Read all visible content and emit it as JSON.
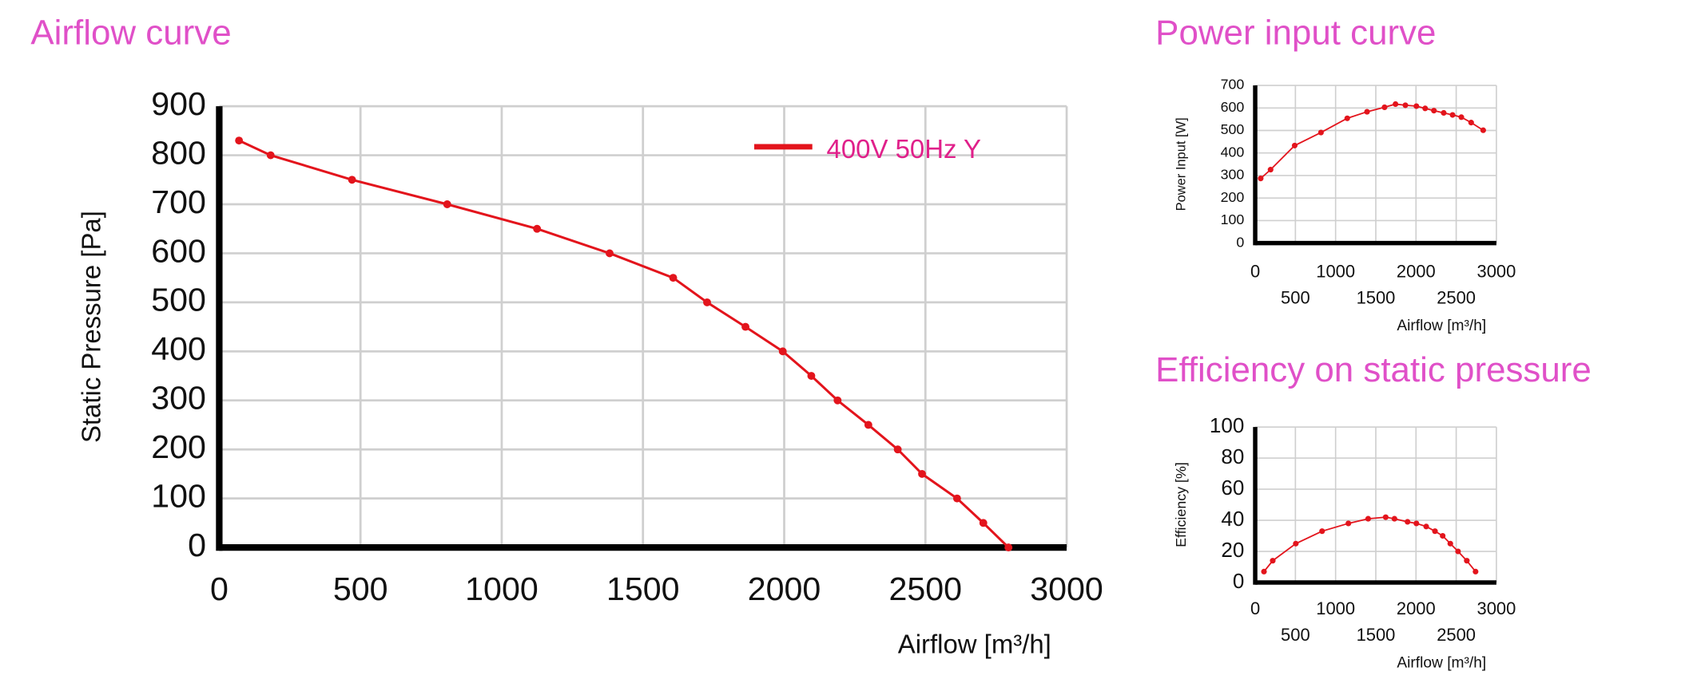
{
  "chart_data": [
    {
      "type": "line",
      "title": "Airflow curve",
      "x_label": "Airflow [m³/h]",
      "y_label": "Static Pressure [Pa]",
      "x": [
        70,
        182,
        470,
        807,
        1125,
        1382,
        1607,
        1727,
        1863,
        1995,
        2096,
        2189,
        2298,
        2402,
        2488,
        2612,
        2705,
        2794
      ],
      "series": [
        {
          "name": "400V 50Hz Y",
          "color": "#e3141c",
          "values": [
            830,
            800,
            750,
            700,
            650,
            600,
            550,
            500,
            450,
            400,
            350,
            300,
            250,
            200,
            150,
            100,
            50,
            0
          ]
        }
      ],
      "xlim": [
        0,
        3000
      ],
      "ylim": [
        0,
        900
      ],
      "xticks": [
        0,
        500,
        1000,
        1500,
        2000,
        2500,
        3000
      ],
      "yticks": [
        0,
        100,
        200,
        300,
        400,
        500,
        600,
        700,
        800,
        900
      ],
      "grid": true,
      "legend": "upper-right"
    },
    {
      "type": "line",
      "title": "Power input curve",
      "x_label": "Airflow  [m³/h]",
      "y_label": "Power Input [W]",
      "x": [
        68,
        191,
        491,
        818,
        1145,
        1391,
        1609,
        1745,
        1868,
        2005,
        2114,
        2223,
        2345,
        2455,
        2564,
        2686,
        2836
      ],
      "values": [
        287,
        326,
        433,
        491,
        554,
        583,
        603,
        617,
        612,
        608,
        598,
        588,
        578,
        569,
        559,
        535,
        501
      ],
      "color": "#e3141c",
      "xlim": [
        0,
        3000
      ],
      "ylim": [
        0,
        700
      ],
      "xticks": [
        0,
        500,
        1000,
        1500,
        2000,
        2500,
        3000
      ],
      "yticks": [
        0,
        100,
        200,
        300,
        400,
        500,
        600,
        700
      ],
      "grid": true
    },
    {
      "type": "line",
      "title": "Efficiency on static pressure",
      "x_label": "Airflow  [m³/h]",
      "y_label": "Efficiency [%]",
      "x": [
        109,
        218,
        505,
        832,
        1159,
        1405,
        1623,
        1732,
        1895,
        2005,
        2127,
        2236,
        2332,
        2427,
        2523,
        2632,
        2741
      ],
      "values": [
        7,
        14,
        25,
        33,
        38,
        41,
        42,
        41,
        39,
        38,
        36,
        33,
        30,
        25,
        20,
        14,
        7
      ],
      "color": "#e3141c",
      "xlim": [
        0,
        3000
      ],
      "ylim": [
        0,
        100
      ],
      "xticks": [
        0,
        500,
        1000,
        1500,
        2000,
        2500,
        3000
      ],
      "yticks": [
        0,
        20,
        40,
        60,
        80,
        100
      ],
      "grid": true
    }
  ]
}
